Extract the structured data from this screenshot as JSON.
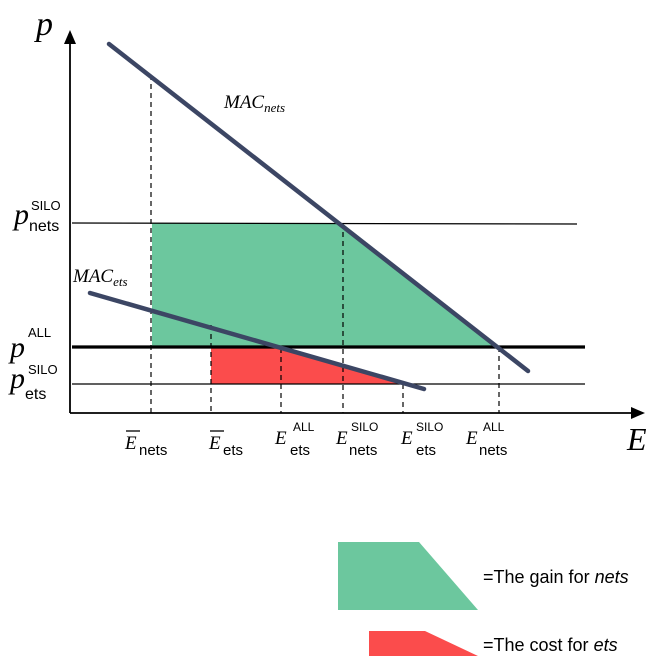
{
  "axes": {
    "y_label": "p",
    "x_label": "E"
  },
  "curves": {
    "mac_nets": {
      "base": "MAC",
      "sub": "nets"
    },
    "mac_ets": {
      "base": "MAC",
      "sub": "ets"
    }
  },
  "price_labels": {
    "p_nets_silo": {
      "base": "p",
      "sup": "SILO",
      "sub": "nets"
    },
    "p_all": {
      "base": "p",
      "sup": "ALL"
    },
    "p_ets_silo": {
      "base": "p",
      "sup": "SILO",
      "sub": "ets"
    }
  },
  "quantity_labels": {
    "ebar_nets": {
      "base": "E",
      "sub": "nets"
    },
    "ebar_ets": {
      "base": "E",
      "sub": "ets"
    },
    "e_ets_all": {
      "base": "E",
      "sup": "ALL",
      "sub": "ets"
    },
    "e_nets_silo": {
      "base": "E",
      "sup": "SILO",
      "sub": "nets"
    },
    "e_ets_silo": {
      "base": "E",
      "sup": "SILO",
      "sub": "ets"
    },
    "e_nets_all": {
      "base": "E",
      "sup": "ALL",
      "sub": "nets"
    }
  },
  "legend": {
    "gain_prefix": "=The gain for ",
    "gain_em": "nets",
    "cost_prefix": "=The cost for ",
    "cost_em": "ets"
  },
  "colors": {
    "gain_fill": "#6cc79e",
    "cost_fill": "#fb4c4c",
    "mac_line": "#3c4664"
  }
}
